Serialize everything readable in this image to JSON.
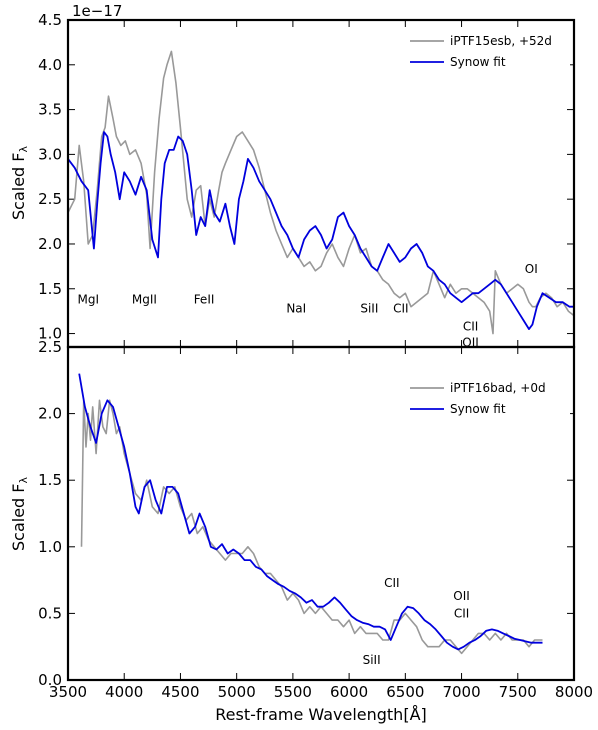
{
  "chart_data": [
    {
      "type": "line",
      "ylabel": "Scaled F",
      "ylabel_sub": "λ",
      "xlim": [
        3500,
        8000
      ],
      "ylim": [
        0.85,
        4.5
      ],
      "offset_text": "1e−17",
      "xticks": [
        3500,
        4000,
        4500,
        5000,
        5500,
        6000,
        6500,
        7000,
        7500,
        8000
      ],
      "yticks": [
        1.0,
        1.5,
        2.0,
        2.5,
        3.0,
        3.5,
        4.0,
        4.5
      ],
      "ytick_labels": [
        "1.0",
        "1.5",
        "2.0",
        "2.5",
        "3.0",
        "3.5",
        "4.0",
        "4.5"
      ],
      "legend_position": "top-right",
      "series": [
        {
          "name": "iPTF15esb, +52d",
          "color": "#999999",
          "x": [
            3500,
            3560,
            3600,
            3640,
            3680,
            3720,
            3760,
            3800,
            3830,
            3860,
            3900,
            3930,
            3970,
            4010,
            4050,
            4100,
            4150,
            4200,
            4230,
            4270,
            4310,
            4350,
            4380,
            4420,
            4460,
            4500,
            4530,
            4560,
            4600,
            4640,
            4680,
            4720,
            4760,
            4800,
            4840,
            4870,
            4900,
            4950,
            5000,
            5050,
            5100,
            5150,
            5200,
            5250,
            5300,
            5350,
            5400,
            5450,
            5500,
            5550,
            5600,
            5650,
            5700,
            5750,
            5800,
            5850,
            5900,
            5950,
            6000,
            6050,
            6100,
            6150,
            6200,
            6250,
            6300,
            6350,
            6400,
            6450,
            6500,
            6550,
            6600,
            6650,
            6700,
            6750,
            6800,
            6850,
            6900,
            6950,
            7000,
            7050,
            7100,
            7150,
            7200,
            7250,
            7280,
            7300,
            7350,
            7400,
            7450,
            7500,
            7550,
            7600,
            7630,
            7660,
            7700,
            7750,
            7800,
            7850,
            7900,
            7950,
            8000
          ],
          "y": [
            2.35,
            2.5,
            3.1,
            2.7,
            2.0,
            2.1,
            2.6,
            3.2,
            3.3,
            3.65,
            3.4,
            3.2,
            3.1,
            3.15,
            3.0,
            3.05,
            2.9,
            2.55,
            1.95,
            2.8,
            3.4,
            3.85,
            4.0,
            4.15,
            3.8,
            3.3,
            2.9,
            2.5,
            2.3,
            2.6,
            2.65,
            2.2,
            2.5,
            2.3,
            2.6,
            2.8,
            2.9,
            3.05,
            3.2,
            3.25,
            3.15,
            3.05,
            2.85,
            2.6,
            2.35,
            2.15,
            2.0,
            1.85,
            1.95,
            1.85,
            1.75,
            1.8,
            1.7,
            1.75,
            1.9,
            2.0,
            1.85,
            1.75,
            1.95,
            2.1,
            1.9,
            1.95,
            1.75,
            1.7,
            1.6,
            1.55,
            1.45,
            1.4,
            1.45,
            1.3,
            1.35,
            1.4,
            1.45,
            1.7,
            1.55,
            1.4,
            1.55,
            1.45,
            1.5,
            1.5,
            1.45,
            1.4,
            1.35,
            1.25,
            1.0,
            1.7,
            1.55,
            1.45,
            1.5,
            1.55,
            1.5,
            1.35,
            1.3,
            1.3,
            1.4,
            1.45,
            1.4,
            1.3,
            1.35,
            1.25,
            1.2
          ]
        },
        {
          "name": "Synow fit",
          "color": "#0000dd",
          "x": [
            3500,
            3560,
            3620,
            3680,
            3730,
            3760,
            3790,
            3820,
            3850,
            3880,
            3920,
            3960,
            4000,
            4050,
            4100,
            4150,
            4200,
            4250,
            4300,
            4330,
            4360,
            4400,
            4440,
            4480,
            4520,
            4560,
            4600,
            4640,
            4680,
            4720,
            4760,
            4800,
            4850,
            4900,
            4940,
            4980,
            5020,
            5060,
            5100,
            5150,
            5200,
            5250,
            5300,
            5350,
            5400,
            5450,
            5500,
            5550,
            5600,
            5650,
            5700,
            5750,
            5800,
            5850,
            5900,
            5950,
            6000,
            6050,
            6100,
            6150,
            6200,
            6250,
            6300,
            6350,
            6400,
            6450,
            6500,
            6550,
            6600,
            6650,
            6700,
            6750,
            6800,
            6850,
            6900,
            6950,
            7000,
            7050,
            7100,
            7150,
            7200,
            7250,
            7300,
            7350,
            7400,
            7450,
            7500,
            7550,
            7600,
            7630,
            7670,
            7720,
            7780,
            7840,
            7900,
            7960,
            8000
          ],
          "y": [
            2.95,
            2.85,
            2.7,
            2.6,
            1.95,
            2.45,
            2.9,
            3.25,
            3.2,
            3.0,
            2.8,
            2.5,
            2.8,
            2.7,
            2.55,
            2.75,
            2.6,
            2.05,
            1.85,
            2.5,
            2.9,
            3.05,
            3.05,
            3.2,
            3.15,
            3.0,
            2.6,
            2.1,
            2.3,
            2.2,
            2.6,
            2.35,
            2.25,
            2.45,
            2.2,
            2.0,
            2.5,
            2.7,
            2.95,
            2.85,
            2.7,
            2.6,
            2.5,
            2.35,
            2.2,
            2.1,
            1.95,
            1.85,
            2.05,
            2.15,
            2.2,
            2.1,
            1.95,
            2.05,
            2.3,
            2.35,
            2.2,
            2.1,
            1.95,
            1.85,
            1.75,
            1.7,
            1.85,
            2.0,
            1.9,
            1.8,
            1.85,
            1.95,
            2.0,
            1.9,
            1.75,
            1.7,
            1.6,
            1.55,
            1.45,
            1.4,
            1.35,
            1.4,
            1.45,
            1.45,
            1.5,
            1.55,
            1.6,
            1.55,
            1.45,
            1.35,
            1.25,
            1.15,
            1.05,
            1.1,
            1.3,
            1.45,
            1.4,
            1.35,
            1.35,
            1.3,
            1.3
          ]
        }
      ],
      "annotations": [
        {
          "text": "MgI",
          "x": 3680,
          "y": 1.38
        },
        {
          "text": "MgII",
          "x": 4180,
          "y": 1.38
        },
        {
          "text": "FeII",
          "x": 4710,
          "y": 1.38
        },
        {
          "text": "NaI",
          "x": 5530,
          "y": 1.28
        },
        {
          "text": "SiII",
          "x": 6180,
          "y": 1.28
        },
        {
          "text": "CII",
          "x": 6460,
          "y": 1.28
        },
        {
          "text": "CII",
          "x": 7080,
          "y": 1.08
        },
        {
          "text": "OII",
          "x": 7080,
          "y": 0.9
        },
        {
          "text": "OI",
          "x": 7620,
          "y": 1.72
        }
      ]
    },
    {
      "type": "line",
      "ylabel": "Scaled F",
      "ylabel_sub": "λ",
      "xlabel": "Rest-frame Wavelength[Å]",
      "xlim": [
        3500,
        8000
      ],
      "ylim": [
        0,
        2.5
      ],
      "xticks": [
        3500,
        4000,
        4500,
        5000,
        5500,
        6000,
        6500,
        7000,
        7500,
        8000
      ],
      "xtick_labels": [
        "3500",
        "4000",
        "4500",
        "5000",
        "5500",
        "6000",
        "6500",
        "7000",
        "7500",
        "8000"
      ],
      "yticks": [
        0.0,
        0.5,
        1.0,
        1.5,
        2.0,
        2.5
      ],
      "ytick_labels": [
        "0.0",
        "0.5",
        "1.0",
        "1.5",
        "2.0",
        "2.5"
      ],
      "legend_position": "top-right",
      "series": [
        {
          "name": "iPTF16bad, +0d",
          "color": "#999999",
          "x": [
            3620,
            3640,
            3660,
            3680,
            3700,
            3720,
            3750,
            3780,
            3810,
            3840,
            3870,
            3900,
            3930,
            3960,
            4000,
            4050,
            4100,
            4150,
            4200,
            4250,
            4300,
            4350,
            4400,
            4450,
            4500,
            4550,
            4600,
            4650,
            4700,
            4750,
            4800,
            4850,
            4900,
            4950,
            5000,
            5050,
            5100,
            5150,
            5200,
            5250,
            5300,
            5350,
            5400,
            5450,
            5500,
            5550,
            5600,
            5650,
            5700,
            5750,
            5800,
            5850,
            5900,
            5950,
            6000,
            6050,
            6100,
            6150,
            6200,
            6250,
            6300,
            6350,
            6400,
            6450,
            6500,
            6550,
            6600,
            6650,
            6700,
            6750,
            6800,
            6850,
            6900,
            6950,
            7000,
            7050,
            7100,
            7150,
            7200,
            7250,
            7300,
            7350,
            7400,
            7450,
            7500,
            7550,
            7600,
            7650,
            7700,
            7720
          ],
          "y": [
            1.0,
            2.1,
            1.75,
            2.0,
            1.8,
            2.05,
            1.7,
            2.1,
            1.9,
            1.85,
            2.1,
            2.0,
            1.85,
            1.9,
            1.7,
            1.55,
            1.4,
            1.35,
            1.5,
            1.3,
            1.25,
            1.45,
            1.4,
            1.45,
            1.3,
            1.2,
            1.25,
            1.1,
            1.15,
            1.05,
            1.0,
            0.95,
            0.9,
            0.95,
            0.95,
            0.95,
            1.0,
            0.95,
            0.85,
            0.8,
            0.8,
            0.75,
            0.7,
            0.6,
            0.65,
            0.6,
            0.5,
            0.55,
            0.5,
            0.55,
            0.5,
            0.45,
            0.45,
            0.4,
            0.45,
            0.35,
            0.4,
            0.35,
            0.35,
            0.35,
            0.3,
            0.3,
            0.45,
            0.45,
            0.5,
            0.45,
            0.4,
            0.3,
            0.25,
            0.25,
            0.25,
            0.3,
            0.3,
            0.25,
            0.2,
            0.25,
            0.3,
            0.35,
            0.35,
            0.3,
            0.35,
            0.3,
            0.35,
            0.3,
            0.3,
            0.3,
            0.25,
            0.3,
            0.3,
            0.3
          ]
        },
        {
          "name": "Synow fit",
          "color": "#0000dd",
          "x": [
            3600,
            3650,
            3700,
            3750,
            3800,
            3850,
            3900,
            3950,
            4000,
            4050,
            4100,
            4130,
            4180,
            4230,
            4280,
            4330,
            4380,
            4430,
            4480,
            4530,
            4580,
            4630,
            4670,
            4720,
            4770,
            4820,
            4870,
            4920,
            4970,
            5020,
            5070,
            5120,
            5170,
            5220,
            5270,
            5320,
            5370,
            5420,
            5470,
            5520,
            5570,
            5620,
            5670,
            5720,
            5770,
            5820,
            5870,
            5920,
            5970,
            6020,
            6070,
            6120,
            6170,
            6220,
            6270,
            6320,
            6370,
            6420,
            6470,
            6520,
            6570,
            6620,
            6670,
            6720,
            6770,
            6820,
            6870,
            6920,
            6970,
            7020,
            7070,
            7120,
            7170,
            7220,
            7270,
            7320,
            7370,
            7420,
            7470,
            7520,
            7570,
            7620,
            7670,
            7720
          ],
          "y": [
            2.3,
            2.05,
            1.9,
            1.78,
            2.0,
            2.1,
            2.05,
            1.9,
            1.75,
            1.55,
            1.3,
            1.25,
            1.45,
            1.5,
            1.35,
            1.25,
            1.45,
            1.45,
            1.4,
            1.25,
            1.1,
            1.15,
            1.25,
            1.15,
            1.0,
            0.98,
            1.02,
            0.95,
            0.98,
            0.95,
            0.9,
            0.9,
            0.85,
            0.83,
            0.78,
            0.75,
            0.72,
            0.7,
            0.67,
            0.65,
            0.62,
            0.58,
            0.6,
            0.55,
            0.55,
            0.58,
            0.62,
            0.58,
            0.53,
            0.48,
            0.45,
            0.43,
            0.42,
            0.4,
            0.4,
            0.38,
            0.3,
            0.4,
            0.5,
            0.55,
            0.54,
            0.5,
            0.45,
            0.42,
            0.38,
            0.33,
            0.28,
            0.25,
            0.23,
            0.25,
            0.28,
            0.3,
            0.33,
            0.37,
            0.38,
            0.37,
            0.35,
            0.33,
            0.31,
            0.3,
            0.29,
            0.28,
            0.28,
            0.28
          ]
        }
      ],
      "annotations": [
        {
          "text": "CII",
          "x": 6380,
          "y": 0.73
        },
        {
          "text": "OII",
          "x": 7000,
          "y": 0.63
        },
        {
          "text": "CII",
          "x": 7000,
          "y": 0.5
        },
        {
          "text": "SiII",
          "x": 6200,
          "y": 0.15
        }
      ]
    }
  ]
}
